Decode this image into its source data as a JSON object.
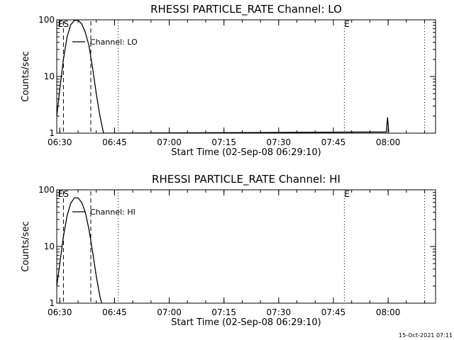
{
  "footer": {
    "timestamp": "15-Oct-2021 07:11"
  },
  "chart_data": [
    {
      "type": "line",
      "title": "RHESSI PARTICLE_RATE Channel: LO",
      "xlabel": "Start Time (02-Sep-08 06:29:10)",
      "ylabel": "Counts/sec",
      "yscale": "log",
      "ylim": [
        1,
        100
      ],
      "xlim": [
        "06:29:10",
        "08:13:00"
      ],
      "x_ticks": [
        "06:30",
        "06:45",
        "07:00",
        "07:15",
        "07:30",
        "07:45",
        "08:00"
      ],
      "y_ticks": [
        "1",
        "10",
        "100"
      ],
      "grid": false,
      "legend_position": "top-left",
      "series": [
        {
          "name": "Channel: LO",
          "color": "#000000",
          "points": [
            [
              "06:29:10",
              2
            ],
            [
              "06:30:00",
              6
            ],
            [
              "06:31:00",
              20
            ],
            [
              "06:32:00",
              50
            ],
            [
              "06:33:00",
              82
            ],
            [
              "06:34:00",
              98
            ],
            [
              "06:35:00",
              98
            ],
            [
              "06:36:00",
              85
            ],
            [
              "06:37:00",
              60
            ],
            [
              "06:38:00",
              35
            ],
            [
              "06:39:00",
              14
            ],
            [
              "06:40:00",
              5
            ],
            [
              "06:41:00",
              2
            ],
            [
              "06:42:00",
              1
            ],
            [
              "07:59:30",
              1.05
            ],
            [
              "07:59:50",
              1.9
            ],
            [
              "08:00:10",
              1.05
            ]
          ]
        }
      ],
      "markers": {
        "dashed": [
          "06:31:00",
          "06:38:30"
        ],
        "dotted": [
          "06:46:00",
          "07:48:00",
          "08:10:00"
        ],
        "labels": [
          {
            "text": "E",
            "at": "06:29:30"
          },
          {
            "text": "S",
            "at": "06:31:00"
          },
          {
            "text": "E",
            "at": "07:48:00"
          }
        ]
      }
    },
    {
      "type": "line",
      "title": "RHESSI PARTICLE_RATE Channel: HI",
      "xlabel": "Start Time (02-Sep-08 06:29:10)",
      "ylabel": "Counts/sec",
      "yscale": "log",
      "ylim": [
        1,
        100
      ],
      "xlim": [
        "06:29:10",
        "08:13:00"
      ],
      "x_ticks": [
        "06:30",
        "06:45",
        "07:00",
        "07:15",
        "07:30",
        "07:45",
        "08:00"
      ],
      "y_ticks": [
        "1",
        "10",
        "100"
      ],
      "grid": false,
      "legend_position": "top-left",
      "series": [
        {
          "name": "Channel: HI",
          "color": "#000000",
          "points": [
            [
              "06:29:10",
              2
            ],
            [
              "06:30:00",
              5
            ],
            [
              "06:31:00",
              15
            ],
            [
              "06:32:00",
              35
            ],
            [
              "06:33:00",
              58
            ],
            [
              "06:34:00",
              72
            ],
            [
              "06:35:00",
              72
            ],
            [
              "06:36:00",
              60
            ],
            [
              "06:37:00",
              40
            ],
            [
              "06:38:00",
              20
            ],
            [
              "06:39:00",
              8
            ],
            [
              "06:40:00",
              3
            ],
            [
              "06:41:00",
              1.3
            ],
            [
              "06:41:30",
              1
            ]
          ]
        }
      ],
      "markers": {
        "dashed": [
          "06:31:00",
          "06:38:30"
        ],
        "dotted": [
          "06:46:00",
          "07:48:00",
          "08:10:00"
        ],
        "labels": [
          {
            "text": "E",
            "at": "06:29:30"
          },
          {
            "text": "S",
            "at": "06:31:00"
          },
          {
            "text": "E",
            "at": "07:48:00"
          }
        ]
      }
    }
  ]
}
